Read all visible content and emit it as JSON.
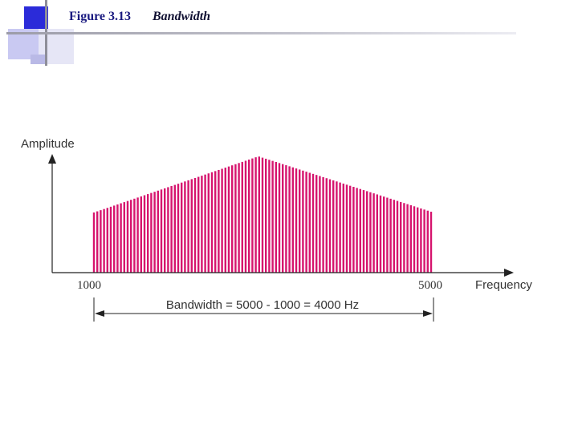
{
  "slide": {
    "figure_number": "Figure 3.13",
    "figure_title": "Bandwidth"
  },
  "diagram": {
    "y_axis_label": "Amplitude",
    "x_axis_label": "Frequency",
    "low_frequency_label": "1000",
    "high_frequency_label": "5000",
    "bandwidth_label": "Bandwidth = 5000 - 1000 = 4000 Hz",
    "colors": {
      "spectrum": "#d6156e",
      "axis": "#222222"
    }
  }
}
